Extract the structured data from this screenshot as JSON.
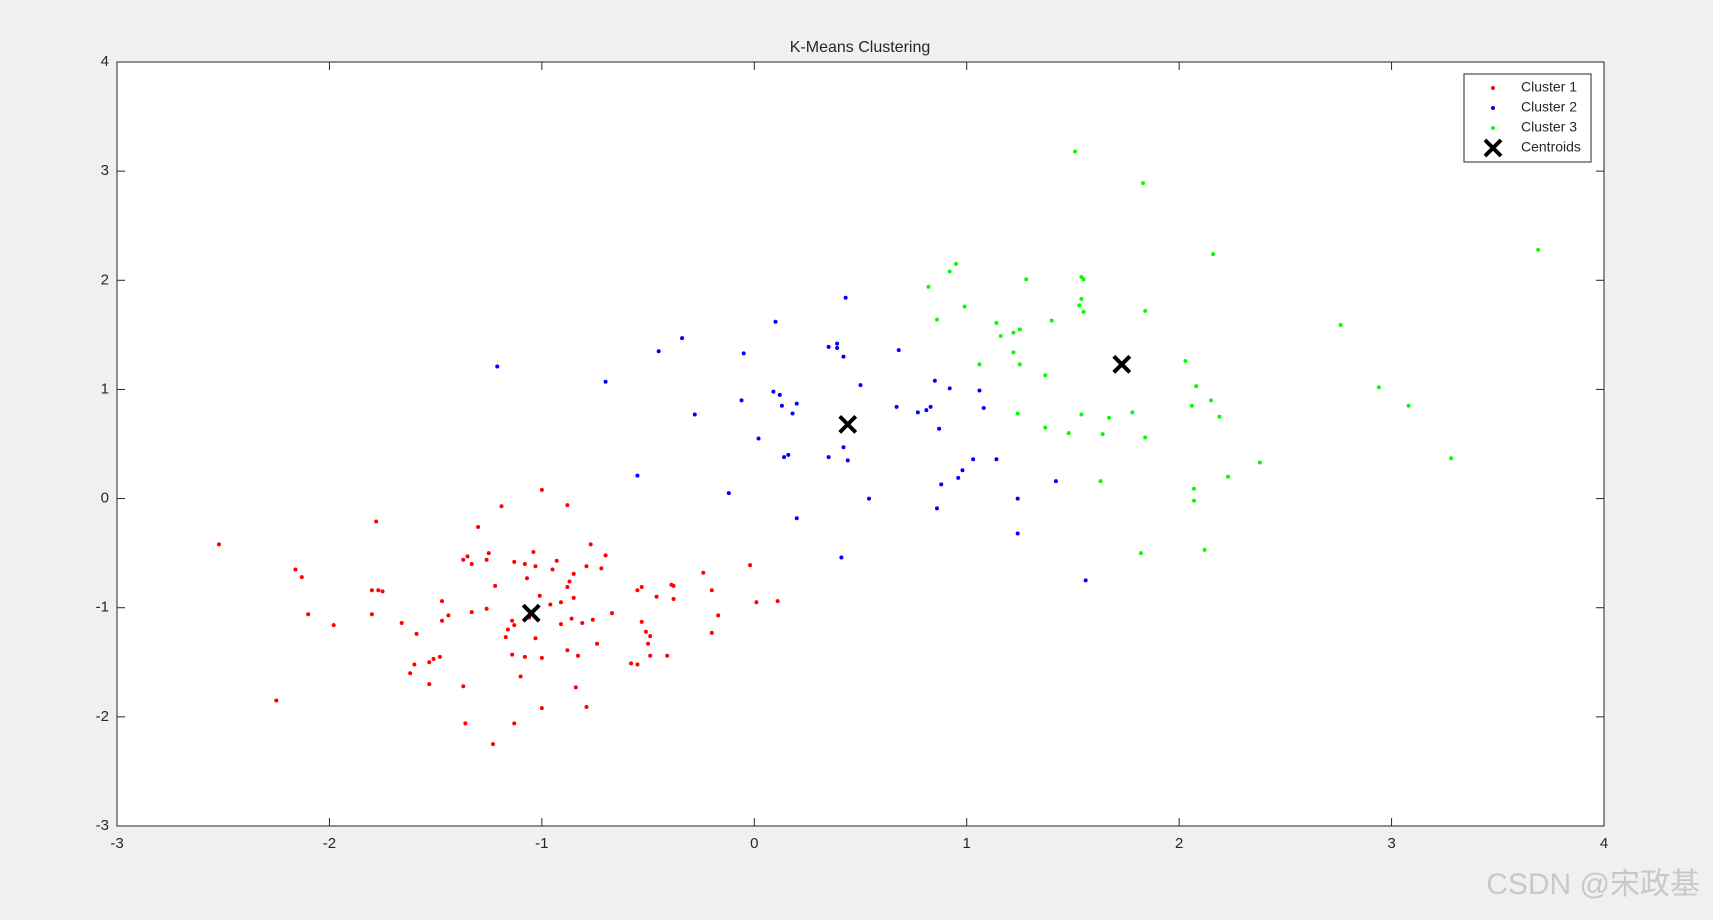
{
  "chart_data": {
    "type": "scatter",
    "title": "K-Means Clustering",
    "xlim": [
      -3,
      4
    ],
    "ylim": [
      -3,
      4
    ],
    "xticks": [
      -3,
      -2,
      -1,
      0,
      1,
      2,
      3,
      4
    ],
    "yticks": [
      -3,
      -2,
      -1,
      0,
      1,
      2,
      3,
      4
    ],
    "legend_location": "northeast",
    "watermark": "CSDN @宋政基",
    "series": [
      {
        "name": "Cluster 1",
        "color": "#ff0000",
        "marker": "dot",
        "x": [
          -2.52,
          -2.25,
          -2.16,
          -2.13,
          -2.1,
          -1.98,
          -1.8,
          -1.77,
          -1.75,
          -1.8,
          -1.78,
          -1.66,
          -1.62,
          -1.6,
          -1.59,
          -1.53,
          -1.51,
          -1.48,
          -1.53,
          -1.47,
          -1.47,
          -1.44,
          -1.37,
          -1.35,
          -1.33,
          -1.37,
          -1.36,
          -1.33,
          -1.3,
          -1.26,
          -1.25,
          -1.26,
          -1.23,
          -1.22,
          -1.19,
          -1.17,
          -1.16,
          -1.14,
          -1.13,
          -1.14,
          -1.13,
          -1.13,
          -1.1,
          -1.08,
          -1.08,
          -1.07,
          -1.06,
          -1.04,
          -1.03,
          -1.03,
          -1.01,
          -1.0,
          -1.0,
          -1.0,
          -0.96,
          -0.95,
          -0.93,
          -0.91,
          -0.91,
          -0.88,
          -0.88,
          -0.88,
          -0.87,
          -0.86,
          -0.85,
          -0.85,
          -0.84,
          -0.83,
          -0.81,
          -0.79,
          -0.79,
          -0.77,
          -0.76,
          -0.74,
          -0.72,
          -0.7,
          -0.67,
          -0.58,
          -0.55,
          -0.55,
          -0.53,
          -0.53,
          -0.51,
          -0.5,
          -0.49,
          -0.49,
          -0.46,
          -0.41,
          -0.39,
          -0.38,
          -0.38,
          -0.24,
          -0.2,
          -0.2,
          -0.17,
          -0.02,
          0.01,
          0.11
        ],
        "y": [
          -0.42,
          -1.85,
          -0.65,
          -0.72,
          -1.06,
          -1.16,
          -0.84,
          -0.84,
          -0.85,
          -1.06,
          -0.21,
          -1.14,
          -1.6,
          -1.52,
          -1.24,
          -1.5,
          -1.47,
          -1.45,
          -1.7,
          -0.94,
          -1.12,
          -1.07,
          -0.56,
          -0.53,
          -0.6,
          -1.72,
          -2.06,
          -1.04,
          -0.26,
          -0.56,
          -0.5,
          -1.01,
          -2.25,
          -0.8,
          -0.07,
          -1.27,
          -1.2,
          -1.43,
          -1.16,
          -1.12,
          -2.06,
          -0.58,
          -1.63,
          -0.6,
          -1.45,
          -0.73,
          -1.09,
          -0.49,
          -1.28,
          -0.62,
          -0.89,
          0.08,
          -1.46,
          -1.92,
          -0.97,
          -0.65,
          -0.57,
          -1.15,
          -0.95,
          -0.06,
          -1.39,
          -0.81,
          -0.76,
          -1.1,
          -0.69,
          -0.91,
          -1.73,
          -1.44,
          -1.14,
          -0.62,
          -1.91,
          -0.42,
          -1.11,
          -1.33,
          -0.64,
          -0.52,
          -1.05,
          -1.51,
          -1.52,
          -0.84,
          -0.81,
          -1.13,
          -1.22,
          -1.33,
          -1.26,
          -1.44,
          -0.9,
          -1.44,
          -0.79,
          -0.8,
          -0.92,
          -0.68,
          -0.84,
          -1.23,
          -1.07,
          -0.61,
          -0.95,
          -0.94
        ]
      },
      {
        "name": "Cluster 2",
        "color": "#0000ff",
        "marker": "dot",
        "x": [
          -1.21,
          -0.7,
          -0.55,
          -0.45,
          -0.34,
          -0.28,
          -0.12,
          -0.05,
          -0.06,
          0.02,
          0.09,
          0.12,
          0.1,
          0.13,
          0.14,
          0.16,
          0.18,
          0.2,
          0.2,
          0.35,
          0.39,
          0.39,
          0.35,
          0.42,
          0.43,
          0.41,
          0.42,
          0.44,
          0.5,
          0.54,
          0.67,
          0.68,
          0.77,
          0.81,
          0.83,
          0.85,
          0.86,
          0.87,
          0.88,
          0.92,
          0.96,
          0.98,
          1.03,
          1.06,
          1.08,
          1.14,
          1.24,
          1.24,
          1.42,
          1.56
        ],
        "y": [
          1.21,
          1.07,
          0.21,
          1.35,
          1.47,
          0.77,
          0.05,
          1.33,
          0.9,
          0.55,
          0.98,
          0.95,
          1.62,
          0.85,
          0.38,
          0.4,
          0.78,
          0.87,
          -0.18,
          1.39,
          1.38,
          1.42,
          0.38,
          1.3,
          1.84,
          -0.54,
          0.47,
          0.35,
          1.04,
          0.0,
          0.84,
          1.36,
          0.79,
          0.81,
          0.84,
          1.08,
          -0.09,
          0.64,
          0.13,
          1.01,
          0.19,
          0.26,
          0.36,
          0.99,
          0.83,
          0.36,
          0.0,
          -0.32,
          0.16,
          -0.75
        ]
      },
      {
        "name": "Cluster 3",
        "color": "#00ff00",
        "marker": "dot",
        "x": [
          0.82,
          0.86,
          0.92,
          0.95,
          0.99,
          1.06,
          1.14,
          1.16,
          1.22,
          1.22,
          1.25,
          1.25,
          1.24,
          1.28,
          1.37,
          1.37,
          1.4,
          1.48,
          1.51,
          1.53,
          1.54,
          1.55,
          1.54,
          1.55,
          1.54,
          1.63,
          1.64,
          1.67,
          1.78,
          1.82,
          1.83,
          1.84,
          1.84,
          2.03,
          2.06,
          2.07,
          2.07,
          2.08,
          2.12,
          2.15,
          2.16,
          2.19,
          2.23,
          2.38,
          2.76,
          2.94,
          3.08,
          3.28,
          3.69
        ],
        "y": [
          1.94,
          1.64,
          2.08,
          2.15,
          1.76,
          1.23,
          1.61,
          1.49,
          1.52,
          1.34,
          1.23,
          1.55,
          0.78,
          2.01,
          1.13,
          0.65,
          1.63,
          0.6,
          3.18,
          1.77,
          2.03,
          2.01,
          1.83,
          1.71,
          0.77,
          0.16,
          0.59,
          0.74,
          0.79,
          -0.5,
          2.89,
          1.72,
          0.56,
          1.26,
          0.85,
          0.09,
          -0.02,
          1.03,
          -0.47,
          0.9,
          2.24,
          0.75,
          0.2,
          0.33,
          1.59,
          1.02,
          0.85,
          0.37,
          2.28
        ]
      },
      {
        "name": "Centroids",
        "color": "#000000",
        "marker": "x",
        "x": [
          -1.05,
          0.44,
          1.73
        ],
        "y": [
          -1.05,
          0.68,
          1.23
        ]
      }
    ]
  }
}
